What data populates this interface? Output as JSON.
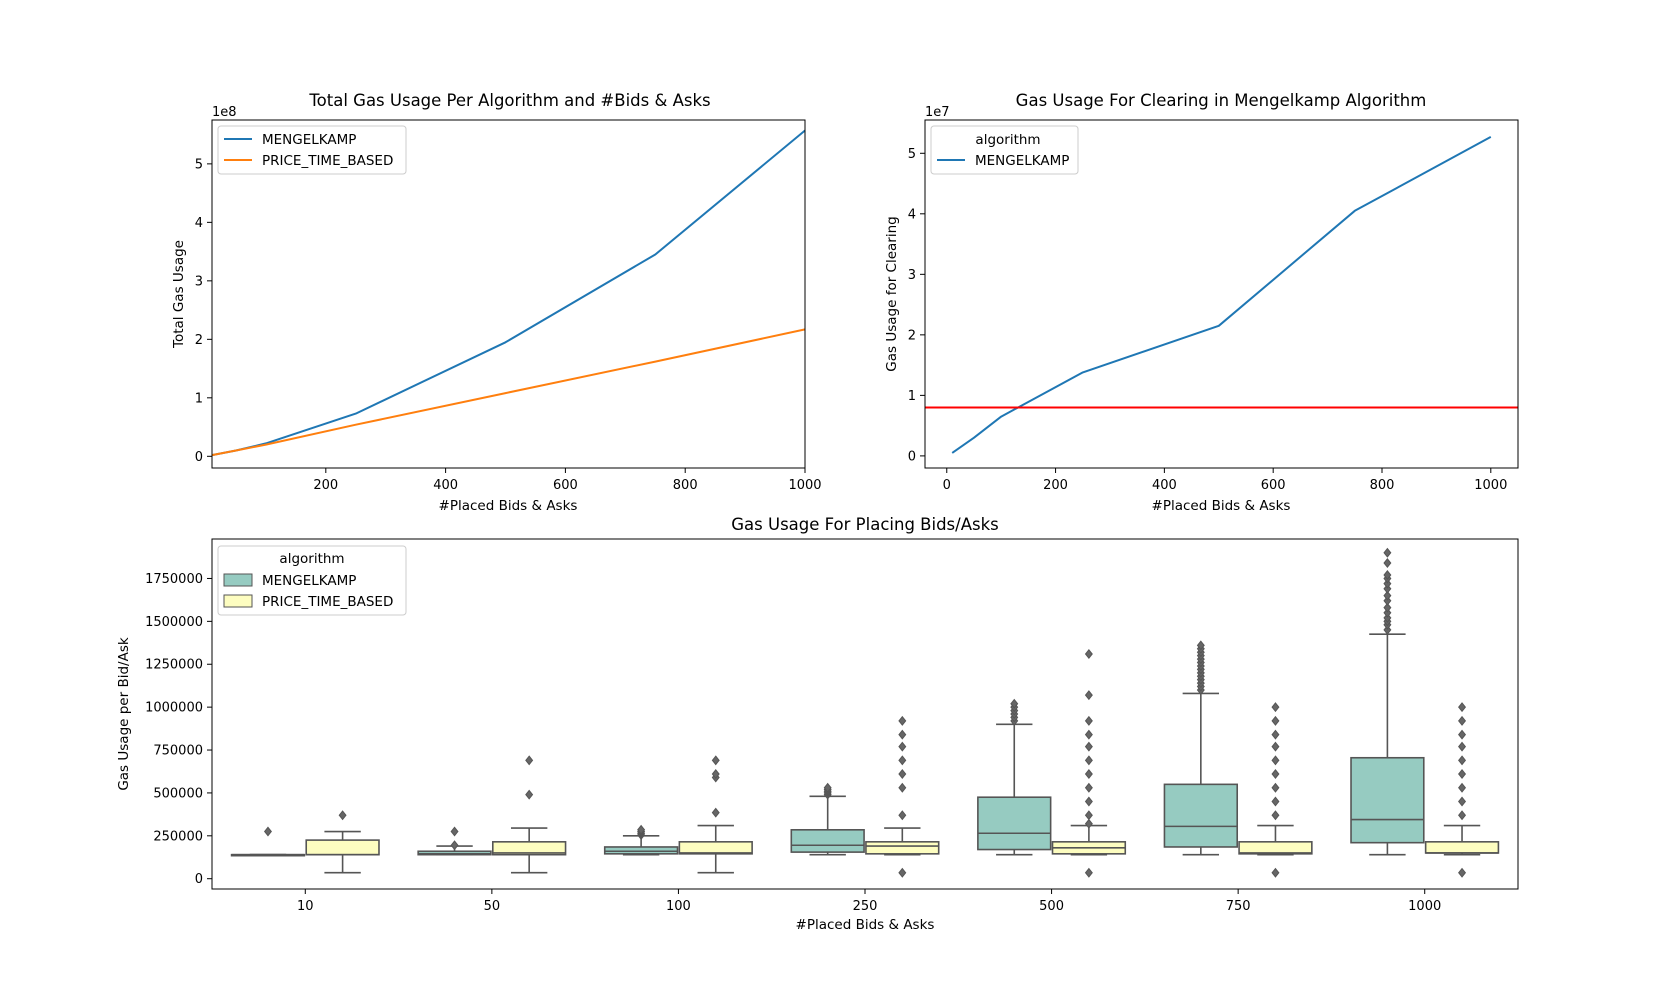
{
  "chart_data": [
    {
      "type": "line",
      "title": "Total Gas Usage Per Algorithm and #Bids & Asks",
      "xlabel": "#Placed Bids & Asks",
      "ylabel": "Total Gas Usage",
      "y_offset_label": "1e8",
      "xlim": [
        10,
        1000
      ],
      "ylim": [
        -0.2,
        5.75
      ],
      "xticks": [
        200,
        400,
        600,
        800,
        1000
      ],
      "yticks": [
        0,
        1,
        2,
        3,
        4,
        5
      ],
      "legend": {
        "title": "",
        "placement": "upper left"
      },
      "series": [
        {
          "name": "MENGELKAMP",
          "color": "#1f77b4",
          "x": [
            10,
            50,
            100,
            250,
            500,
            750,
            1000
          ],
          "y": [
            0.02,
            0.1,
            0.22,
            0.73,
            1.95,
            3.45,
            5.57
          ]
        },
        {
          "name": "PRICE_TIME_BASED",
          "color": "#ff7f0e",
          "x": [
            10,
            50,
            100,
            250,
            500,
            750,
            1000
          ],
          "y": [
            0.02,
            0.1,
            0.2,
            0.54,
            1.08,
            1.62,
            2.17
          ]
        }
      ]
    },
    {
      "type": "line",
      "title": "Gas Usage For Clearing in Mengelkamp Algorithm",
      "xlabel": "#Placed Bids & Asks",
      "ylabel": "Gas Usage for Clearing",
      "y_offset_label": "1e7",
      "xlim": [
        -40,
        1050
      ],
      "ylim": [
        -0.2,
        5.55
      ],
      "xticks": [
        0,
        200,
        400,
        600,
        800,
        1000
      ],
      "yticks": [
        0,
        1,
        2,
        3,
        4,
        5
      ],
      "legend": {
        "title": "algorithm",
        "placement": "upper left"
      },
      "series": [
        {
          "name": "MENGELKAMP",
          "color": "#1f77b4",
          "x": [
            10,
            50,
            100,
            250,
            500,
            750,
            1000
          ],
          "y": [
            0.05,
            0.3,
            0.65,
            1.38,
            2.15,
            4.05,
            5.27
          ]
        }
      ],
      "hline": {
        "y": 0.8,
        "color": "#ff0000"
      }
    },
    {
      "type": "box",
      "title": "Gas Usage For Placing Bids/Asks",
      "xlabel": "#Placed Bids & Asks",
      "ylabel": "Gas Usage per Bid/Ask",
      "ylim": [
        -60000,
        1980000
      ],
      "yticks": [
        0,
        250000,
        500000,
        750000,
        1000000,
        1250000,
        1500000,
        1750000
      ],
      "categories": [
        "10",
        "50",
        "100",
        "250",
        "500",
        "750",
        "1000"
      ],
      "legend": {
        "title": "algorithm",
        "placement": "upper left"
      },
      "series": [
        {
          "name": "MENGELKAMP",
          "color": "#96cbc1",
          "boxes": [
            {
              "min": 140000,
              "q1": 140000,
              "median": 140000,
              "q3": 140000,
              "max": 140000,
              "outliers": [
                275000
              ]
            },
            {
              "min": 140000,
              "q1": 140000,
              "median": 145000,
              "q3": 160000,
              "max": 190000,
              "outliers": [
                195000,
                275000
              ]
            },
            {
              "min": 140000,
              "q1": 145000,
              "median": 160000,
              "q3": 185000,
              "max": 250000,
              "outliers": [
                255000,
                265000,
                275000,
                285000
              ]
            },
            {
              "min": 140000,
              "q1": 155000,
              "median": 195000,
              "q3": 285000,
              "max": 480000,
              "outliers": [
                490000,
                500000,
                510000,
                520000,
                530000
              ]
            },
            {
              "min": 140000,
              "q1": 170000,
              "median": 265000,
              "q3": 475000,
              "max": 900000,
              "outliers": [
                920000,
                940000,
                960000,
                980000,
                1000000,
                1020000
              ]
            },
            {
              "min": 140000,
              "q1": 185000,
              "median": 305000,
              "q3": 550000,
              "max": 1080000,
              "outliers": [
                1100000,
                1120000,
                1140000,
                1160000,
                1180000,
                1200000,
                1220000,
                1240000,
                1260000,
                1280000,
                1300000,
                1320000,
                1340000,
                1360000
              ]
            },
            {
              "min": 140000,
              "q1": 210000,
              "median": 345000,
              "q3": 705000,
              "max": 1425000,
              "outliers": [
                1450000,
                1480000,
                1500000,
                1520000,
                1550000,
                1580000,
                1620000,
                1650000,
                1690000,
                1720000,
                1750000,
                1770000,
                1840000,
                1900000
              ]
            }
          ]
        },
        {
          "name": "PRICE_TIME_BASED",
          "color": "#fdfdc0",
          "boxes": [
            {
              "min": 35000,
              "q1": 140000,
              "median": 140000,
              "q3": 225000,
              "max": 275000,
              "outliers": [
                370000
              ]
            },
            {
              "min": 35000,
              "q1": 140000,
              "median": 150000,
              "q3": 215000,
              "max": 295000,
              "outliers": [
                490000,
                690000
              ]
            },
            {
              "min": 35000,
              "q1": 145000,
              "median": 150000,
              "q3": 215000,
              "max": 310000,
              "outliers": [
                385000,
                590000,
                610000,
                690000
              ]
            },
            {
              "min": 140000,
              "q1": 145000,
              "median": 190000,
              "q3": 215000,
              "max": 295000,
              "outliers": [
                35000,
                370000,
                530000,
                610000,
                690000,
                770000,
                840000,
                920000
              ]
            },
            {
              "min": 140000,
              "q1": 145000,
              "median": 180000,
              "q3": 215000,
              "max": 310000,
              "outliers": [
                35000,
                320000,
                370000,
                450000,
                530000,
                610000,
                690000,
                770000,
                840000,
                920000,
                1070000,
                1310000
              ]
            },
            {
              "min": 140000,
              "q1": 145000,
              "median": 150000,
              "q3": 215000,
              "max": 310000,
              "outliers": [
                35000,
                370000,
                450000,
                530000,
                610000,
                690000,
                770000,
                840000,
                920000,
                1000000
              ]
            },
            {
              "min": 140000,
              "q1": 150000,
              "median": 150000,
              "q3": 215000,
              "max": 310000,
              "outliers": [
                35000,
                370000,
                450000,
                530000,
                610000,
                690000,
                770000,
                840000,
                920000,
                1000000
              ]
            }
          ]
        }
      ]
    }
  ]
}
